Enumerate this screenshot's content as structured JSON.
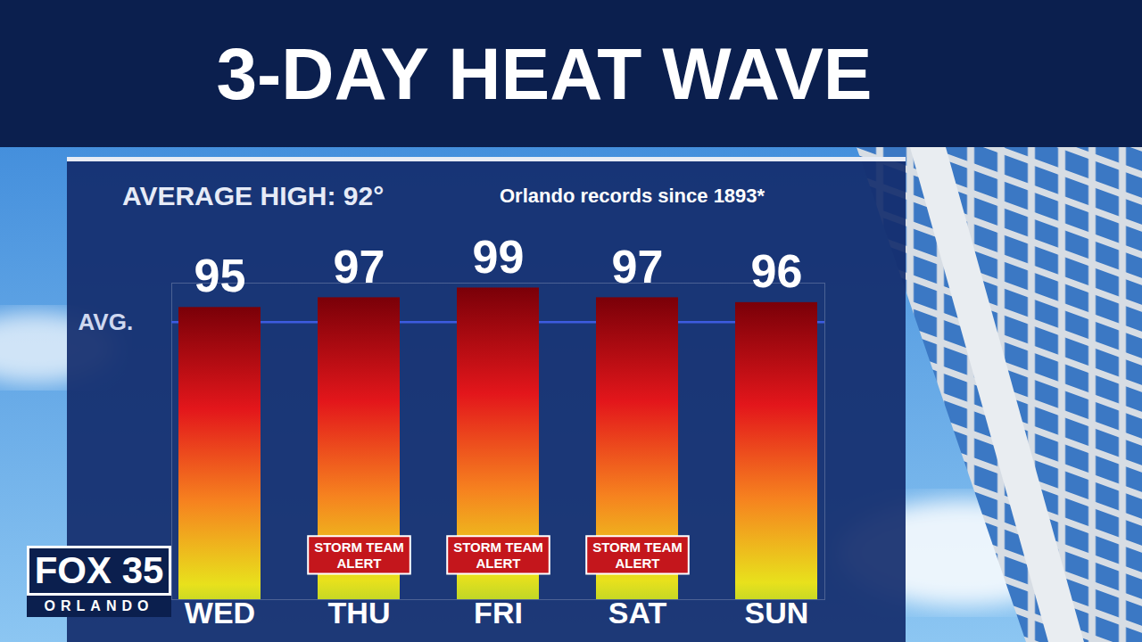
{
  "chart_data": {
    "type": "bar",
    "title": "3-DAY HEAT WAVE",
    "subtitle": "AVERAGE HIGH: 92°",
    "annotations": [
      "Orlando records since 1893*"
    ],
    "categories": [
      "WED",
      "THU",
      "FRI",
      "SAT",
      "SUN"
    ],
    "values": [
      95,
      97,
      99,
      97,
      96
    ],
    "ylim": [
      35,
      100
    ],
    "data_labels": true,
    "tick_labels": "x",
    "reference_line": {
      "value": 92,
      "label": "AVG."
    },
    "alerts": {
      "label": "STORM TEAM ALERT",
      "categories": [
        "THU",
        "FRI",
        "SAT"
      ]
    }
  },
  "logo": {
    "name": "FOX 35",
    "place": "ORLANDO"
  }
}
